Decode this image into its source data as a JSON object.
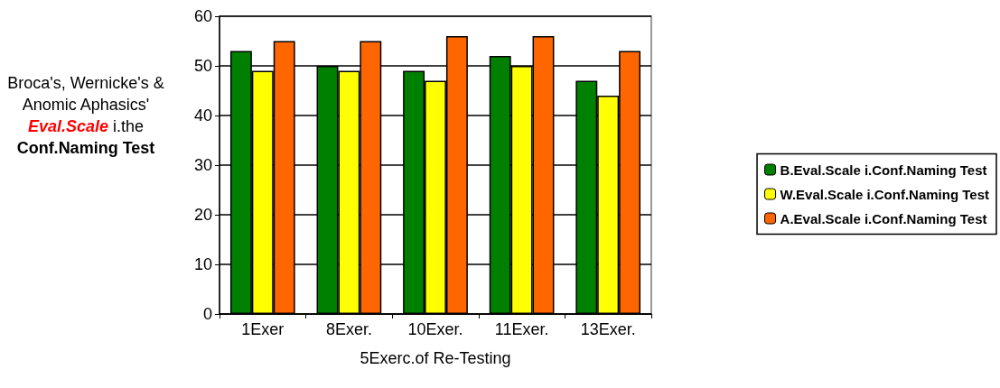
{
  "chart_data": {
    "type": "bar",
    "categories": [
      "1Exer",
      "8Exer.",
      "10Exer.",
      "11Exer.",
      "13Exer."
    ],
    "series": [
      {
        "name": "B.Eval.Scale i.Conf.Naming Test",
        "color": "#008000",
        "values": [
          53,
          50,
          49,
          52,
          47
        ]
      },
      {
        "name": "W.Eval.Scale i.Conf.Naming Test",
        "color": "#ffff00",
        "values": [
          49,
          49,
          47,
          50,
          44
        ]
      },
      {
        "name": "A.Eval.Scale i.Conf.Naming Test",
        "color": "#ff6600",
        "values": [
          55,
          55,
          56,
          56,
          53
        ]
      }
    ],
    "xlabel": "5Exerc.of Re-Testing",
    "ylabel": "Broca's, Wernicke's & Anomic Aphasics' Eval.Scale i.the Conf.Naming Test",
    "ylim": [
      0,
      60
    ],
    "yticks": [
      0,
      10,
      20,
      30,
      40,
      50,
      60
    ],
    "grid": "y",
    "legend": "right"
  }
}
